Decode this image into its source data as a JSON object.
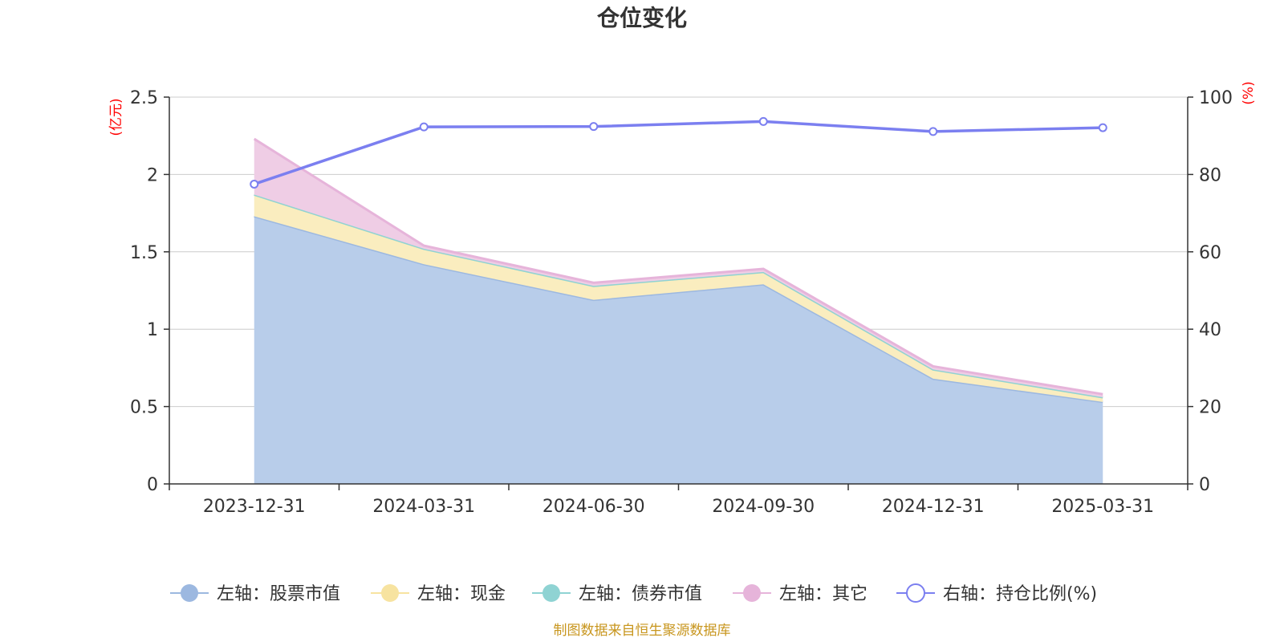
{
  "chart_data": {
    "type": "area",
    "title": "仓位变化",
    "x": [
      "2023-12-31",
      "2024-03-31",
      "2024-06-30",
      "2024-09-30",
      "2024-12-31",
      "2025-03-31"
    ],
    "left_axis": {
      "unit": "(亿元)",
      "ylim": [
        0,
        2.5
      ],
      "ticks": [
        "0",
        "0.5",
        "1",
        "1.5",
        "2",
        "2.5"
      ]
    },
    "right_axis": {
      "unit": "(%)",
      "ylim": [
        0,
        100
      ],
      "ticks": [
        "0",
        "20",
        "40",
        "60",
        "80",
        "100"
      ]
    },
    "grid": true,
    "legend_position": "bottom",
    "series": [
      {
        "name": "左轴：股票市值",
        "axis": "left",
        "kind": "area",
        "stacked": true,
        "color": "#9cb8e0",
        "fill": "#b8cdea",
        "values": [
          1.73,
          1.42,
          1.19,
          1.29,
          0.68,
          0.53
        ]
      },
      {
        "name": "左轴：现金",
        "axis": "left",
        "kind": "area",
        "stacked": true,
        "color": "#f7e3a0",
        "fill": "#faedbf",
        "values": [
          0.14,
          0.1,
          0.09,
          0.08,
          0.06,
          0.03
        ]
      },
      {
        "name": "左轴：债券市值",
        "axis": "left",
        "kind": "area",
        "stacked": true,
        "color": "#8fd3d3",
        "fill": "#bfe6e6",
        "values": [
          0,
          0,
          0,
          0,
          0,
          0
        ]
      },
      {
        "name": "左轴：其它",
        "axis": "left",
        "kind": "area",
        "stacked": true,
        "color": "#e6b4da",
        "fill": "#efcde5",
        "values": [
          0.36,
          0.02,
          0.02,
          0.02,
          0.02,
          0.02
        ]
      },
      {
        "name": "右轴：持仓比例(%)",
        "axis": "right",
        "kind": "line",
        "color": "#7b7ff0",
        "values": [
          77.5,
          92.3,
          92.4,
          93.7,
          91.1,
          92.1
        ]
      }
    ],
    "source_text": "制图数据来自恒生聚源数据库"
  }
}
